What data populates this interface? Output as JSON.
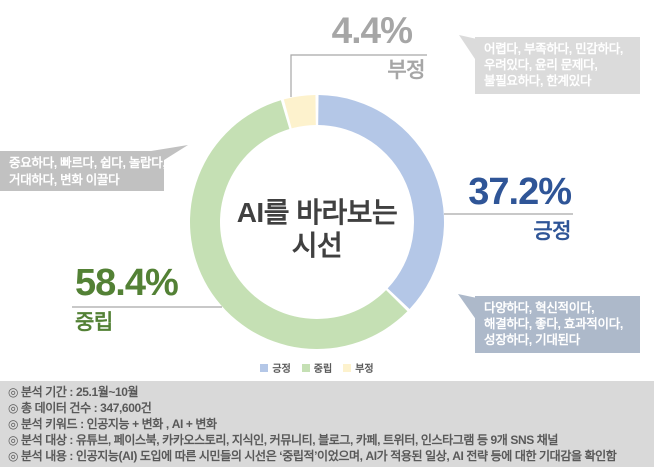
{
  "chart_data": {
    "type": "pie",
    "donut": true,
    "title": "AI를 바라보는 시선",
    "title_lines": [
      "AI를 바라보는",
      "시선"
    ],
    "legend_position": "bottom",
    "series": [
      {
        "key": "positive",
        "name": "긍정",
        "value": 37.2,
        "color": "#B4C7E7",
        "label_color": "#2F5597"
      },
      {
        "key": "neutral",
        "name": "중립",
        "value": 58.4,
        "color": "#C5E0B4",
        "label_color": "#538135"
      },
      {
        "key": "negative",
        "name": "부정",
        "value": 4.4,
        "color": "#FDF2CD",
        "label_color": "#A6A6A6"
      }
    ]
  },
  "labels": {
    "positive": {
      "pct": "37.2%",
      "name": "긍정"
    },
    "neutral": {
      "pct": "58.4%",
      "name": "중립"
    },
    "negative": {
      "pct": "4.4%",
      "name": "부정"
    }
  },
  "callouts": {
    "neutral": {
      "bg": "#C1C1C1",
      "lines": [
        "중요하다, 빠르다, 쉽다, 놀랍다,",
        "거대하다, 변화 이끌다"
      ]
    },
    "negative": {
      "bg": "#DBDBDB",
      "lines": [
        "어렵다, 부족하다, 민감하다,",
        "우려있다, 윤리 문제다,",
        "불필요하다, 한계있다"
      ]
    },
    "positive": {
      "bg": "#ADB9CA",
      "lines": [
        "다양하다, 혁신적이다,",
        "해결하다, 좋다, 효과적이다,",
        "성장하다, 기대된다"
      ]
    }
  },
  "legend": [
    {
      "label": "긍정",
      "color": "#B4C7E7"
    },
    {
      "label": "중립",
      "color": "#C5E0B4"
    },
    {
      "label": "부정",
      "color": "#FDF2CD"
    }
  ],
  "footer": {
    "bg": "#D9D9D9",
    "lines": [
      "◎ 분석 기간 : 25.1월~10월",
      "◎ 총 데이터 건수 : 347,600건",
      "◎ 분석 키워드 : 인공지능 + 변화 , AI + 변화",
      "◎ 분석 대상 : 유튜브, 페이스북, 카카오스토리, 지식인, 커뮤니티, 블로그, 카페, 트위터, 인스타그램 등 9개 SNS 채널",
      "◎ 분석 내용 : 인공지능(AI) 도입에 따른 시민들의 시선은 ‘중립적’이었으며, AI가 적용된 일상, AI 전략 등에 대한 기대감을 확인함"
    ]
  }
}
